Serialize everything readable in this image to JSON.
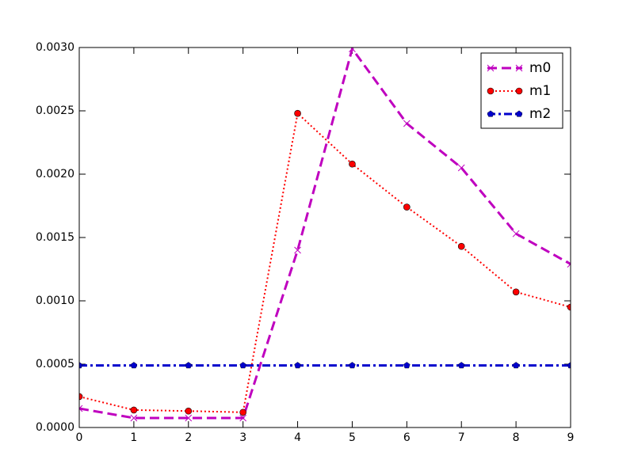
{
  "chart_data": {
    "type": "line",
    "x": [
      0,
      1,
      2,
      3,
      4,
      5,
      6,
      7,
      8,
      9
    ],
    "xlim": [
      0,
      9
    ],
    "xticks": [
      0,
      1,
      2,
      3,
      4,
      5,
      6,
      7,
      8,
      9
    ],
    "ylim": [
      0,
      0.003
    ],
    "yticks": [
      {
        "value": 0,
        "label": "0.0000"
      },
      {
        "value": 0.0005,
        "label": "0.0005"
      },
      {
        "value": 0.001,
        "label": "0.0010"
      },
      {
        "value": 0.0015,
        "label": "0.0015"
      },
      {
        "value": 0.002,
        "label": "0.0020"
      },
      {
        "value": 0.0025,
        "label": "0.0025"
      },
      {
        "value": 0.003,
        "label": "0.0030"
      }
    ],
    "legend": "upper right",
    "series": [
      {
        "name": "m0",
        "color": "#bf00bf",
        "linestyle": "dashed",
        "linewidth": 3,
        "marker": "x",
        "values": [
          0.00015,
          7.5e-05,
          7.5e-05,
          7.5e-05,
          0.0014,
          0.00299,
          0.0024,
          0.00205,
          0.00153,
          0.00129
        ]
      },
      {
        "name": "m1",
        "color": "#ff0000",
        "linestyle": "dotted",
        "linewidth": 2,
        "marker": "o",
        "values": [
          0.000244,
          0.000138,
          0.00013,
          0.00012,
          0.00248,
          0.00208,
          0.00174,
          0.00143,
          0.00107,
          0.00095
        ]
      },
      {
        "name": "m2",
        "color": "#0000cc",
        "linestyle": "dashdot",
        "linewidth": 3,
        "marker": "p",
        "values": [
          0.00049,
          0.00049,
          0.00049,
          0.00049,
          0.00049,
          0.00049,
          0.00049,
          0.00049,
          0.00049,
          0.00049
        ]
      }
    ]
  }
}
